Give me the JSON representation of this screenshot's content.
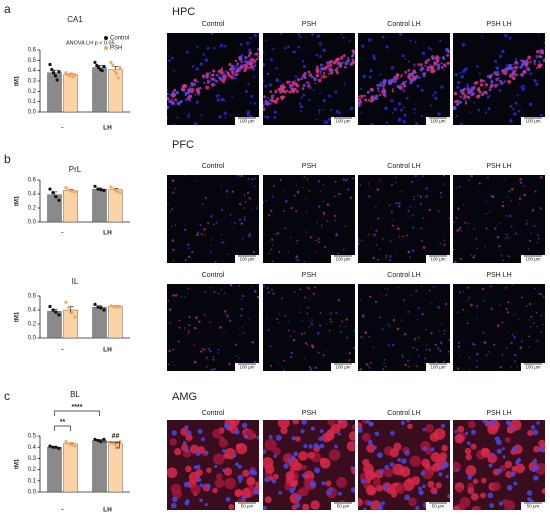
{
  "panel_labels": [
    "a",
    "b",
    "c"
  ],
  "regions": [
    {
      "title": "HPC",
      "rows": [
        {
          "labels": [
            "Control",
            "PSH",
            "Control LH",
            "PSH LH"
          ],
          "scale": "100 µm"
        }
      ]
    },
    {
      "title": "PFC",
      "rows": [
        {
          "labels": [
            "Control",
            "PSH",
            "Control LH",
            "PSH LH"
          ],
          "scale": "100 µm"
        },
        {
          "labels": [
            "Control",
            "PSH",
            "Control LH",
            "PSH LH"
          ],
          "scale": "100 µm"
        }
      ]
    },
    {
      "title": "AMG",
      "rows": [
        {
          "labels": [
            "Control",
            "PSH",
            "Control LH",
            "PSH LH"
          ],
          "scale": "50 µm"
        }
      ]
    }
  ],
  "chart_data": [
    {
      "type": "bar",
      "title": "CA1",
      "y_label": "tM1",
      "categories": [
        "-",
        "LH"
      ],
      "legend": "upper right",
      "annotation": "ANOVA LH p < 0.05",
      "ylim": [
        0,
        0.6
      ],
      "yticks": [
        {
          "value": 0,
          "label": "0.0"
        },
        0.1,
        0.2,
        0.3,
        0.4,
        0.5,
        0.6
      ],
      "series": [
        {
          "name": "Control",
          "color": "#8a8a8a",
          "point_color": "#111111",
          "values": [
            0.38,
            0.43
          ],
          "errors": [
            0.025,
            0.02
          ],
          "points": [
            [
              0.46,
              0.41,
              0.38,
              0.35,
              0.31,
              0.39
            ],
            [
              0.48,
              0.45,
              0.43,
              0.41,
              0.4,
              0.44
            ]
          ]
        },
        {
          "name": "PSH",
          "color": "#fbd3a6",
          "point_color": "#f4a660",
          "values": [
            0.36,
            0.41
          ],
          "errors": [
            0.01,
            0.03
          ],
          "points": [
            [
              0.38,
              0.36,
              0.35,
              0.37,
              0.34,
              0.36
            ],
            [
              0.48,
              0.45,
              0.4,
              0.37,
              0.33,
              0.43
            ]
          ]
        }
      ]
    },
    {
      "type": "bar",
      "title": "PrL",
      "y_label": "tM1",
      "categories": [
        "-",
        "LH"
      ],
      "ylim": [
        0,
        0.6
      ],
      "yticks": [
        {
          "value": 0,
          "label": "0.0"
        },
        0.2,
        0.4,
        0.6
      ],
      "series": [
        {
          "name": "Control",
          "color": "#8a8a8a",
          "point_color": "#111111",
          "values": [
            0.39,
            0.47
          ],
          "errors": [
            0.04,
            0.015
          ],
          "points": [
            [
              0.47,
              0.42,
              0.36,
              0.31
            ],
            [
              0.51,
              0.47,
              0.46,
              0.45
            ]
          ]
        },
        {
          "name": "PSH",
          "color": "#fbd3a6",
          "point_color": "#f4a660",
          "values": [
            0.45,
            0.46
          ],
          "errors": [
            0.015,
            0.02
          ],
          "points": [
            [
              0.49,
              0.46,
              0.44,
              0.43
            ],
            [
              0.5,
              0.47,
              0.44,
              0.42
            ]
          ]
        }
      ]
    },
    {
      "type": "bar",
      "title": "IL",
      "y_label": "tM1",
      "categories": [
        "-",
        "LH"
      ],
      "ylim": [
        0,
        0.6
      ],
      "yticks": [
        {
          "value": 0,
          "label": "0.0"
        },
        0.2,
        0.4,
        0.6
      ],
      "series": [
        {
          "name": "Control",
          "color": "#8a8a8a",
          "point_color": "#111111",
          "values": [
            0.38,
            0.44
          ],
          "errors": [
            0.03,
            0.02
          ],
          "points": [
            [
              0.45,
              0.4,
              0.37,
              0.33
            ],
            [
              0.48,
              0.44,
              0.43,
              0.4
            ]
          ]
        },
        {
          "name": "PSH",
          "color": "#fbd3a6",
          "point_color": "#f4a660",
          "values": [
            0.4,
            0.45
          ],
          "errors": [
            0.05,
            0.01
          ],
          "points": [
            [
              0.51,
              0.44,
              0.36,
              0.3
            ],
            [
              0.46,
              0.45,
              0.44,
              0.45
            ]
          ]
        }
      ]
    },
    {
      "type": "bar",
      "title": "BL",
      "y_label": "tM1",
      "categories": [
        "-",
        "LH"
      ],
      "annotations": [
        "****",
        "**",
        "##"
      ],
      "ylim": [
        0,
        0.5
      ],
      "yticks": [
        {
          "value": 0,
          "label": "0.0"
        },
        0.1,
        0.2,
        0.3,
        0.4,
        0.5
      ],
      "series": [
        {
          "name": "Control",
          "color": "#8a8a8a",
          "point_color": "#111111",
          "values": [
            0.4,
            0.46
          ],
          "errors": [
            0.005,
            0.008
          ],
          "points": [
            [
              0.41,
              0.4,
              0.4,
              0.39
            ],
            [
              0.47,
              0.46,
              0.45,
              0.47
            ]
          ]
        },
        {
          "name": "PSH",
          "color": "#fbd3a6",
          "point_color": "#f4a660",
          "values": [
            0.43,
            0.43
          ],
          "errors": [
            0.008,
            0.01
          ],
          "points": [
            [
              0.45,
              0.43,
              0.42,
              0.41
            ],
            [
              0.44,
              0.43,
              0.41,
              0.45
            ]
          ]
        }
      ]
    }
  ]
}
